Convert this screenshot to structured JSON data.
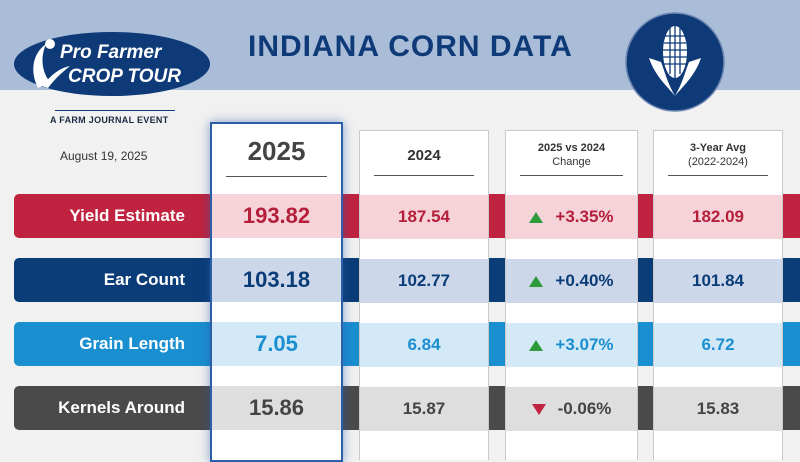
{
  "header": {
    "title": "INDIANA CORN DATA",
    "logo_line1": "Pro Farmer",
    "logo_line2": "CROP TOUR",
    "tagline": "A FARM JOURNAL EVENT",
    "date": "August 19, 2025"
  },
  "columns": {
    "c2025": "2025",
    "c2024": "2024",
    "change_line1": "2025 vs 2024",
    "change_line2": "Change",
    "avg_line1": "3-Year Avg",
    "avg_line2": "(2022-2024)"
  },
  "colors": {
    "yield": "#c0233f",
    "ear": "#0a3c78",
    "grain": "#1a8fd0",
    "kernels": "#4a4a4a",
    "up": "#2e9a3a",
    "down": "#c0233f"
  },
  "rows": {
    "yield": {
      "label": "Yield Estimate",
      "v2025": "193.82",
      "v2024": "187.54",
      "change": "+3.35%",
      "direction": "up",
      "avg": "182.09"
    },
    "ear": {
      "label": "Ear Count",
      "v2025": "103.18",
      "v2024": "102.77",
      "change": "+0.40%",
      "direction": "up",
      "avg": "101.84"
    },
    "grain": {
      "label": "Grain Length",
      "v2025": "7.05",
      "v2024": "6.84",
      "change": "+3.07%",
      "direction": "up",
      "avg": "6.72"
    },
    "kernels": {
      "label": "Kernels Around",
      "v2025": "15.86",
      "v2024": "15.87",
      "change": "-0.06%",
      "direction": "down",
      "avg": "15.83"
    }
  }
}
